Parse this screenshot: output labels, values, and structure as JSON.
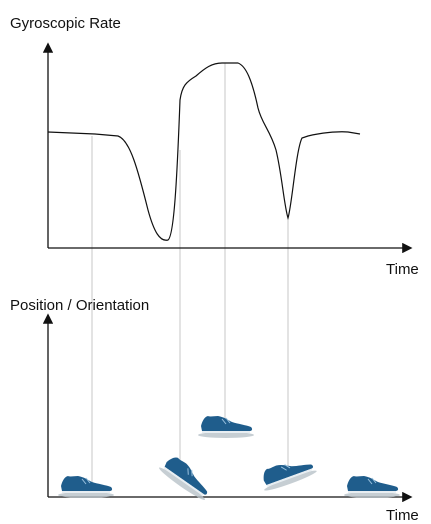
{
  "top_panel": {
    "title": "Gyroscopic Rate",
    "x_axis_label": "Time"
  },
  "bottom_panel": {
    "title": "Position / Orientation",
    "x_axis_label": "Time"
  }
}
